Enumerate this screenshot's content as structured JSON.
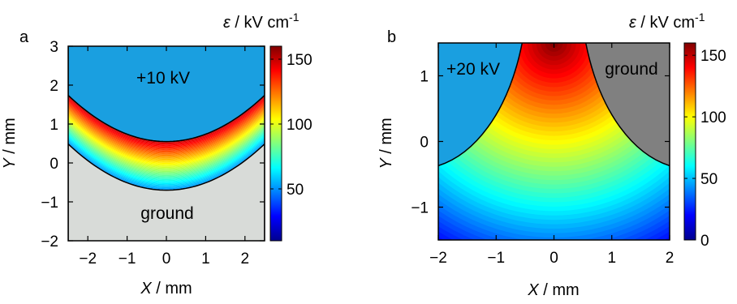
{
  "chart_data": [
    {
      "panel_label": "a",
      "type": "heatmap",
      "xlabel": {
        "var": "X",
        "unit": " / mm"
      },
      "ylabel": {
        "var": "Y",
        "unit": " / mm"
      },
      "xlim": [
        -2.5,
        2.5
      ],
      "ylim": [
        -2,
        3
      ],
      "xticks": [
        -2,
        -1,
        0,
        1,
        2
      ],
      "yticks": [
        -2,
        -1,
        0,
        1,
        2,
        3
      ],
      "colorbar": {
        "label": {
          "var": "ε",
          "unit": " / kV cm",
          "sup": "-1"
        },
        "range": [
          10,
          160
        ],
        "ticks": [
          50,
          100,
          150
        ]
      },
      "field_range": [
        50,
        150
      ],
      "electrodes": [
        {
          "text": "+10 kV",
          "color": "#1a9fe0",
          "boundary": "lower edge y = 0.55 + 0.19·x²",
          "region": "above"
        },
        {
          "text": "ground",
          "color": "#d8dbd8",
          "boundary": "upper edge y = -0.7 + 0.19·x²",
          "region": "below"
        }
      ]
    },
    {
      "panel_label": "b",
      "type": "heatmap",
      "xlabel": {
        "var": "X",
        "unit": " / mm"
      },
      "ylabel": {
        "var": "Y",
        "unit": " / mm"
      },
      "xlim": [
        -2,
        2
      ],
      "ylim": [
        -1.5,
        1.5
      ],
      "xticks": [
        -2,
        -1,
        0,
        1,
        2
      ],
      "yticks": [
        -1,
        0,
        1
      ],
      "colorbar": {
        "label": {
          "var": "ε",
          "unit": " / kV cm",
          "sup": "-1"
        },
        "range": [
          0,
          160
        ],
        "ticks": [
          0,
          50,
          100,
          150
        ]
      },
      "field_range": [
        20,
        160
      ],
      "electrodes": [
        {
          "text": "+20 kV",
          "color": "#1a9fe0",
          "side": "left"
        },
        {
          "text": "ground",
          "color": "#808080",
          "side": "right"
        }
      ]
    }
  ]
}
